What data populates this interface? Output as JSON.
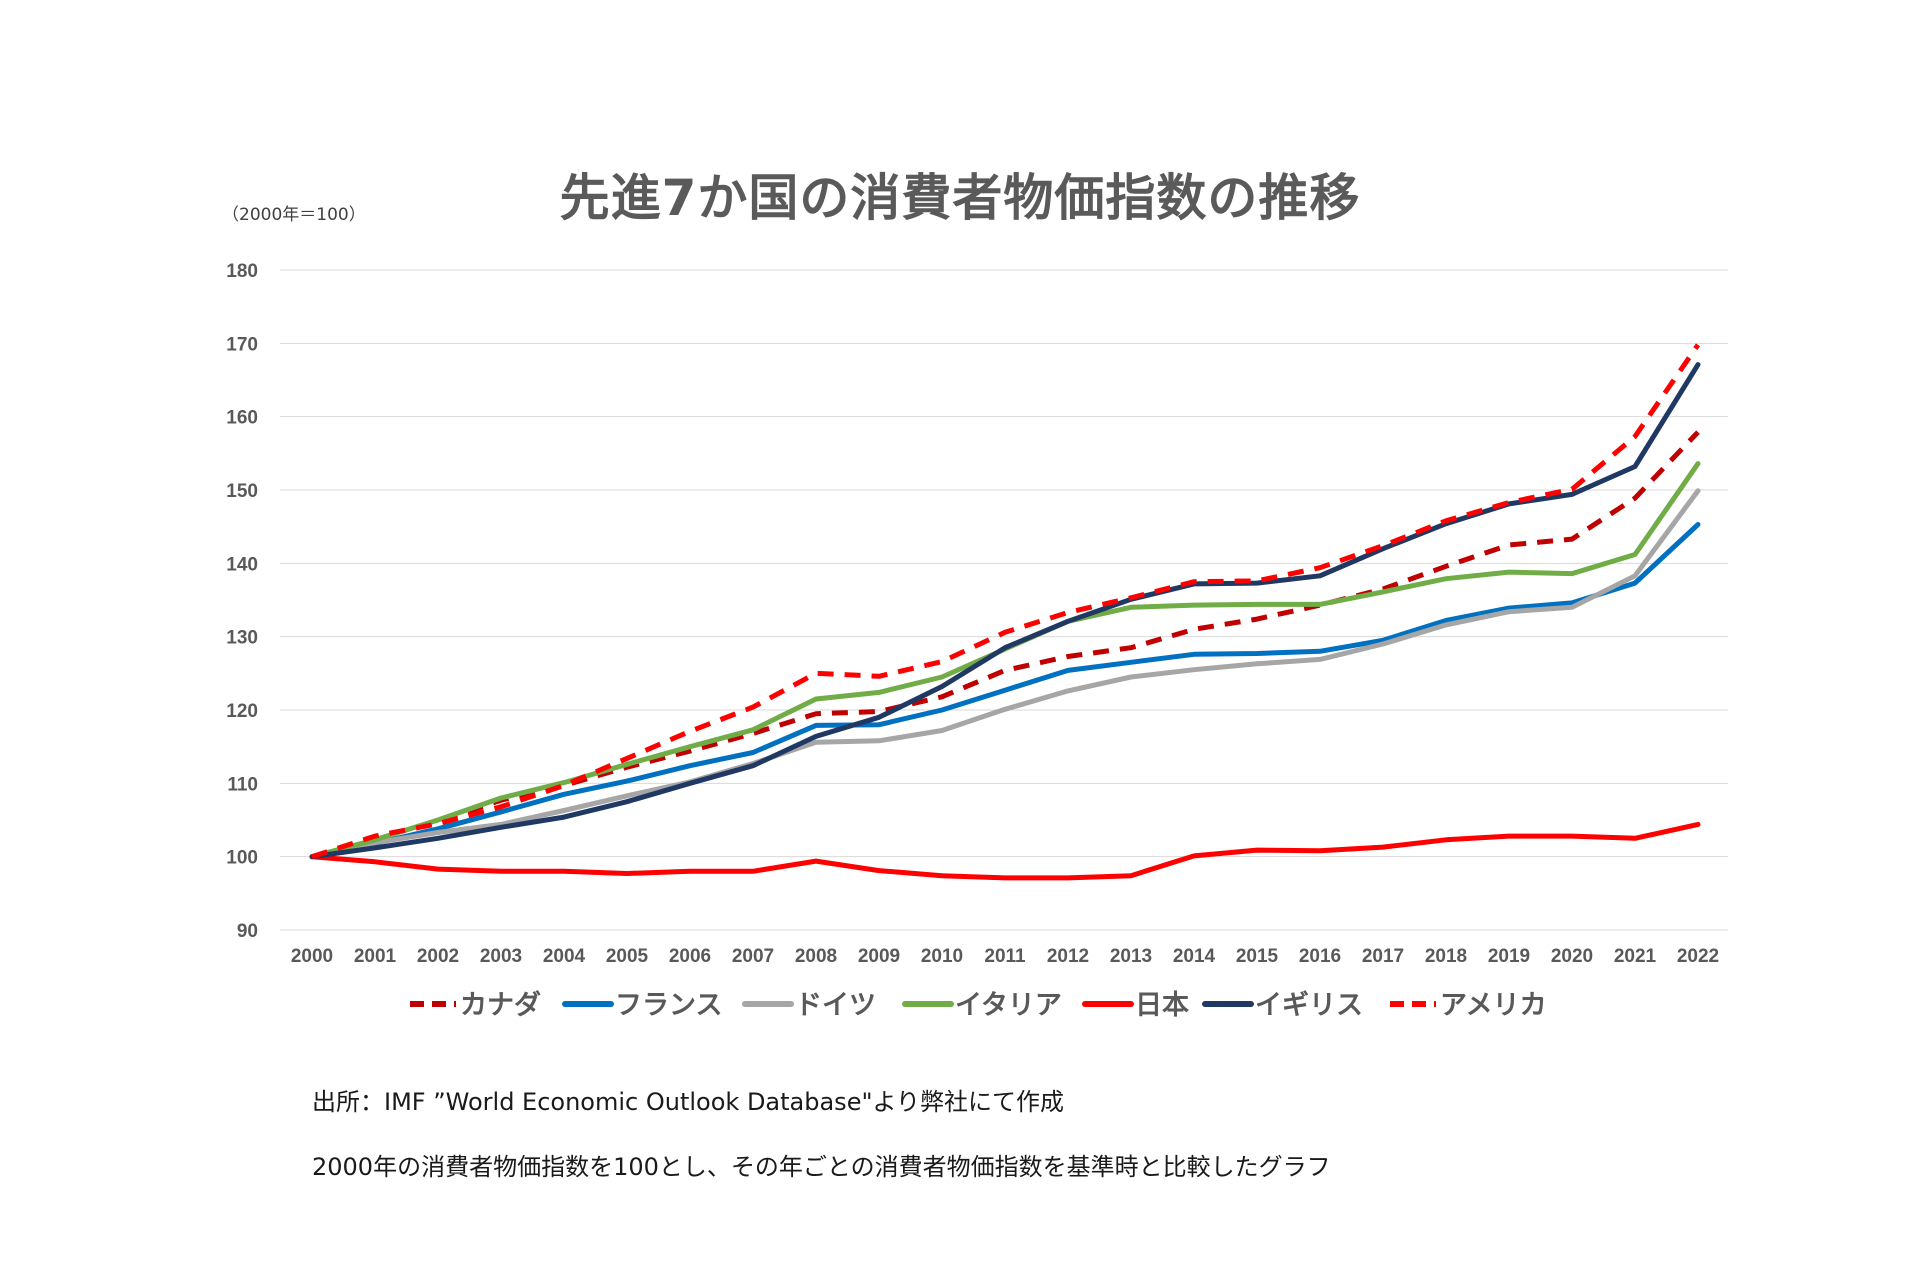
{
  "chart_data": {
    "type": "line",
    "title": "先進7か国の消費者物価指数の推移",
    "ylabel": "（2000年＝100）",
    "xlabel": "",
    "ylim": [
      90,
      180
    ],
    "yticks": [
      90,
      100,
      110,
      120,
      130,
      140,
      150,
      160,
      170,
      180
    ],
    "categories": [
      "2000",
      "2001",
      "2002",
      "2003",
      "2004",
      "2005",
      "2006",
      "2007",
      "2008",
      "2009",
      "2010",
      "2011",
      "2012",
      "2013",
      "2014",
      "2015",
      "2016",
      "2017",
      "2018",
      "2019",
      "2020",
      "2021",
      "2022"
    ],
    "series": [
      {
        "name": "カナダ",
        "color": "#c00000",
        "style": "dashed",
        "values": [
          100,
          102.5,
          104.8,
          107.7,
          109.7,
          112.2,
          114.4,
          116.8,
          119.5,
          119.8,
          121.8,
          125.4,
          127.3,
          128.5,
          131.0,
          132.4,
          134.3,
          136.5,
          139.6,
          142.5,
          143.3,
          148.9,
          157.9
        ]
      },
      {
        "name": "フランス",
        "color": "#0070c0",
        "style": "solid",
        "values": [
          100,
          101.8,
          103.8,
          106.1,
          108.5,
          110.3,
          112.4,
          114.2,
          117.9,
          118.0,
          120.0,
          122.7,
          125.4,
          126.5,
          127.6,
          127.7,
          128.0,
          129.5,
          132.2,
          133.9,
          134.6,
          137.3,
          145.3
        ]
      },
      {
        "name": "ドイツ",
        "color": "#a6a6a6",
        "style": "solid",
        "values": [
          100,
          101.9,
          103.3,
          104.4,
          106.3,
          108.3,
          110.2,
          112.7,
          115.6,
          115.8,
          117.2,
          120.1,
          122.6,
          124.5,
          125.5,
          126.3,
          126.9,
          129.0,
          131.6,
          133.4,
          134.0,
          138.3,
          149.9
        ]
      },
      {
        "name": "イタリア",
        "color": "#70ad47",
        "style": "solid",
        "values": [
          100,
          102.3,
          105.0,
          108.0,
          110.1,
          112.6,
          115.0,
          117.3,
          121.5,
          122.4,
          124.5,
          128.3,
          132.1,
          134.0,
          134.3,
          134.4,
          134.4,
          136.1,
          137.9,
          138.8,
          138.6,
          141.2,
          153.6
        ]
      },
      {
        "name": "日本",
        "color": "#ff0000",
        "style": "solid",
        "values": [
          100,
          99.3,
          98.3,
          98.0,
          98.0,
          97.7,
          98.0,
          98.0,
          99.4,
          98.1,
          97.4,
          97.1,
          97.1,
          97.4,
          100.1,
          100.9,
          100.8,
          101.3,
          102.3,
          102.8,
          102.8,
          102.5,
          104.4
        ]
      },
      {
        "name": "イギリス",
        "color": "#203864",
        "style": "solid",
        "values": [
          100,
          101.2,
          102.5,
          104.0,
          105.4,
          107.5,
          110.0,
          112.4,
          116.4,
          119.0,
          123.2,
          128.5,
          132.1,
          135.1,
          137.2,
          137.3,
          138.3,
          142.0,
          145.4,
          148.1,
          149.4,
          153.2,
          167.1
        ]
      },
      {
        "name": "アメリカ",
        "color": "#ff0000",
        "style": "dashed",
        "values": [
          100,
          102.8,
          104.5,
          106.8,
          109.7,
          113.4,
          117.1,
          120.4,
          125.0,
          124.6,
          126.6,
          130.6,
          133.3,
          135.3,
          137.5,
          137.6,
          139.4,
          142.4,
          145.8,
          148.3,
          150.1,
          157.3,
          169.8
        ]
      }
    ]
  },
  "notes": {
    "source": "出所：IMF ”World Economic Outlook Database\"より弊社にて作成",
    "description": "2000年の消費者物価指数を100とし、その年ごとの消費者物価指数を基準時と比較したグラフ"
  }
}
